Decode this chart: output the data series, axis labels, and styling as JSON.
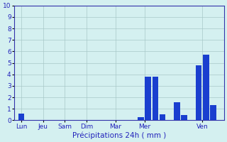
{
  "xlabel": "Précipitations 24h ( mm )",
  "ylim": [
    0,
    10
  ],
  "yticks": [
    0,
    1,
    2,
    3,
    4,
    5,
    6,
    7,
    8,
    9,
    10
  ],
  "background_color": "#d4f0f0",
  "bar_color": "#1a3fcf",
  "grid_color": "#a8c8c8",
  "axis_color": "#3333aa",
  "tick_label_color": "#2222bb",
  "day_labels": [
    "Lun",
    "Jeu",
    "Sam",
    "Dim",
    "Mar",
    "Mer",
    "Ven"
  ],
  "day_tick_positions": [
    0.5,
    3.5,
    6.5,
    9.5,
    13.5,
    17.5,
    25.5
  ],
  "bar_positions": [
    0.5,
    17,
    18,
    19,
    20,
    22,
    23,
    25,
    26,
    27
  ],
  "bar_heights": [
    0.6,
    0.3,
    3.8,
    3.8,
    0.5,
    1.6,
    0.45,
    4.8,
    5.7,
    1.35
  ],
  "num_bars": 28,
  "xlabel_fontsize": 7.5,
  "tick_fontsize": 6.5
}
